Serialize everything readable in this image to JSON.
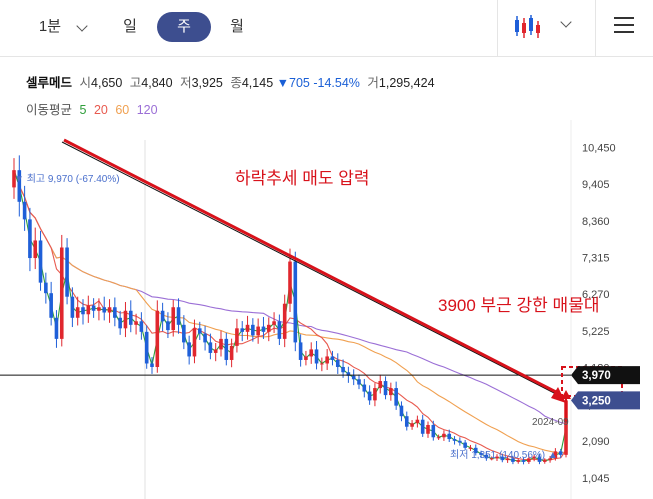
{
  "toolbar": {
    "interval": "1분",
    "tabs": [
      "일",
      "주",
      "월"
    ],
    "active_tab": "주",
    "chart_type_icon": "candlestick-icon",
    "menu_icon": "hamburger-menu-icon"
  },
  "stock": {
    "name": "셀루메드",
    "open_label": "시",
    "open": "4,650",
    "high_label": "고",
    "high": "4,840",
    "low_label": "저",
    "low": "3,925",
    "close_label": "종",
    "close": "4,145",
    "change_arrow": "▼",
    "change": "705",
    "change_pct": "-14.54%",
    "volume_label": "거",
    "volume": "1,295,424"
  },
  "moving_average": {
    "label": "이동평균",
    "periods": [
      {
        "value": "5",
        "color": "#2e9e3a"
      },
      {
        "value": "20",
        "color": "#e85a4f"
      },
      {
        "value": "60",
        "color": "#f0a050"
      },
      {
        "value": "120",
        "color": "#9b6fd6"
      }
    ]
  },
  "colors": {
    "up": "#e0272e",
    "down": "#1f5fd8",
    "trendline": "#d8121b",
    "accent": "#3d4e8f"
  },
  "chart_data": {
    "type": "candlestick",
    "y_ticks": [
      "10,450",
      "9,405",
      "8,360",
      "7,315",
      "6,270",
      "5,225",
      "4,180",
      "3,135",
      "2,090",
      "1,045"
    ],
    "ylim": [
      700,
      11000
    ],
    "max_marker": {
      "label": "최고",
      "value": "9,970",
      "pct": "(-67.40%)",
      "value_num": 9970
    },
    "min_marker": {
      "label": "최저",
      "value": "1,351",
      "pct": "(140.56%)",
      "value_num": 1351
    },
    "price_tags": [
      {
        "value": "3,970",
        "value_num": 3970,
        "style": "dark"
      },
      {
        "value": "3,250",
        "value_num": 3250,
        "style": "accent"
      }
    ],
    "horizontal_line": 3970,
    "date_label": "2024-09",
    "annotations": [
      {
        "text": "하락추세 매도 압력"
      },
      {
        "text": "3900 부근 강한 매물대"
      }
    ],
    "closes": [
      9800,
      8900,
      8400,
      7300,
      7800,
      6600,
      6300,
      5600,
      5000,
      7600,
      6200,
      5600,
      5900,
      5700,
      5950,
      5800,
      5900,
      5750,
      5900,
      5600,
      5300,
      5800,
      5400,
      5500,
      5200,
      4300,
      4200,
      5800,
      5500,
      5250,
      5900,
      5400,
      4900,
      4500,
      5300,
      5150,
      4900,
      4600,
      4700,
      5000,
      4400,
      4800,
      5300,
      5200,
      5400,
      5100,
      5350,
      5200,
      5400,
      5500,
      5000,
      6000,
      7200,
      4900,
      4400,
      4500,
      4700,
      4300,
      4300,
      4500,
      4400,
      4200,
      4050,
      3950,
      3850,
      3700,
      3500,
      3250,
      3600,
      3800,
      3400,
      3600,
      3100,
      2800,
      2500,
      2600,
      2700,
      2300,
      2550,
      2200,
      2200,
      2300,
      2150,
      2100,
      2050,
      1900,
      1900,
      1750,
      1700,
      1600,
      1600,
      1650,
      1550,
      1600,
      1500,
      1550,
      1500,
      1600,
      1650,
      1500,
      1550,
      1600,
      1800,
      1700,
      3250
    ]
  }
}
